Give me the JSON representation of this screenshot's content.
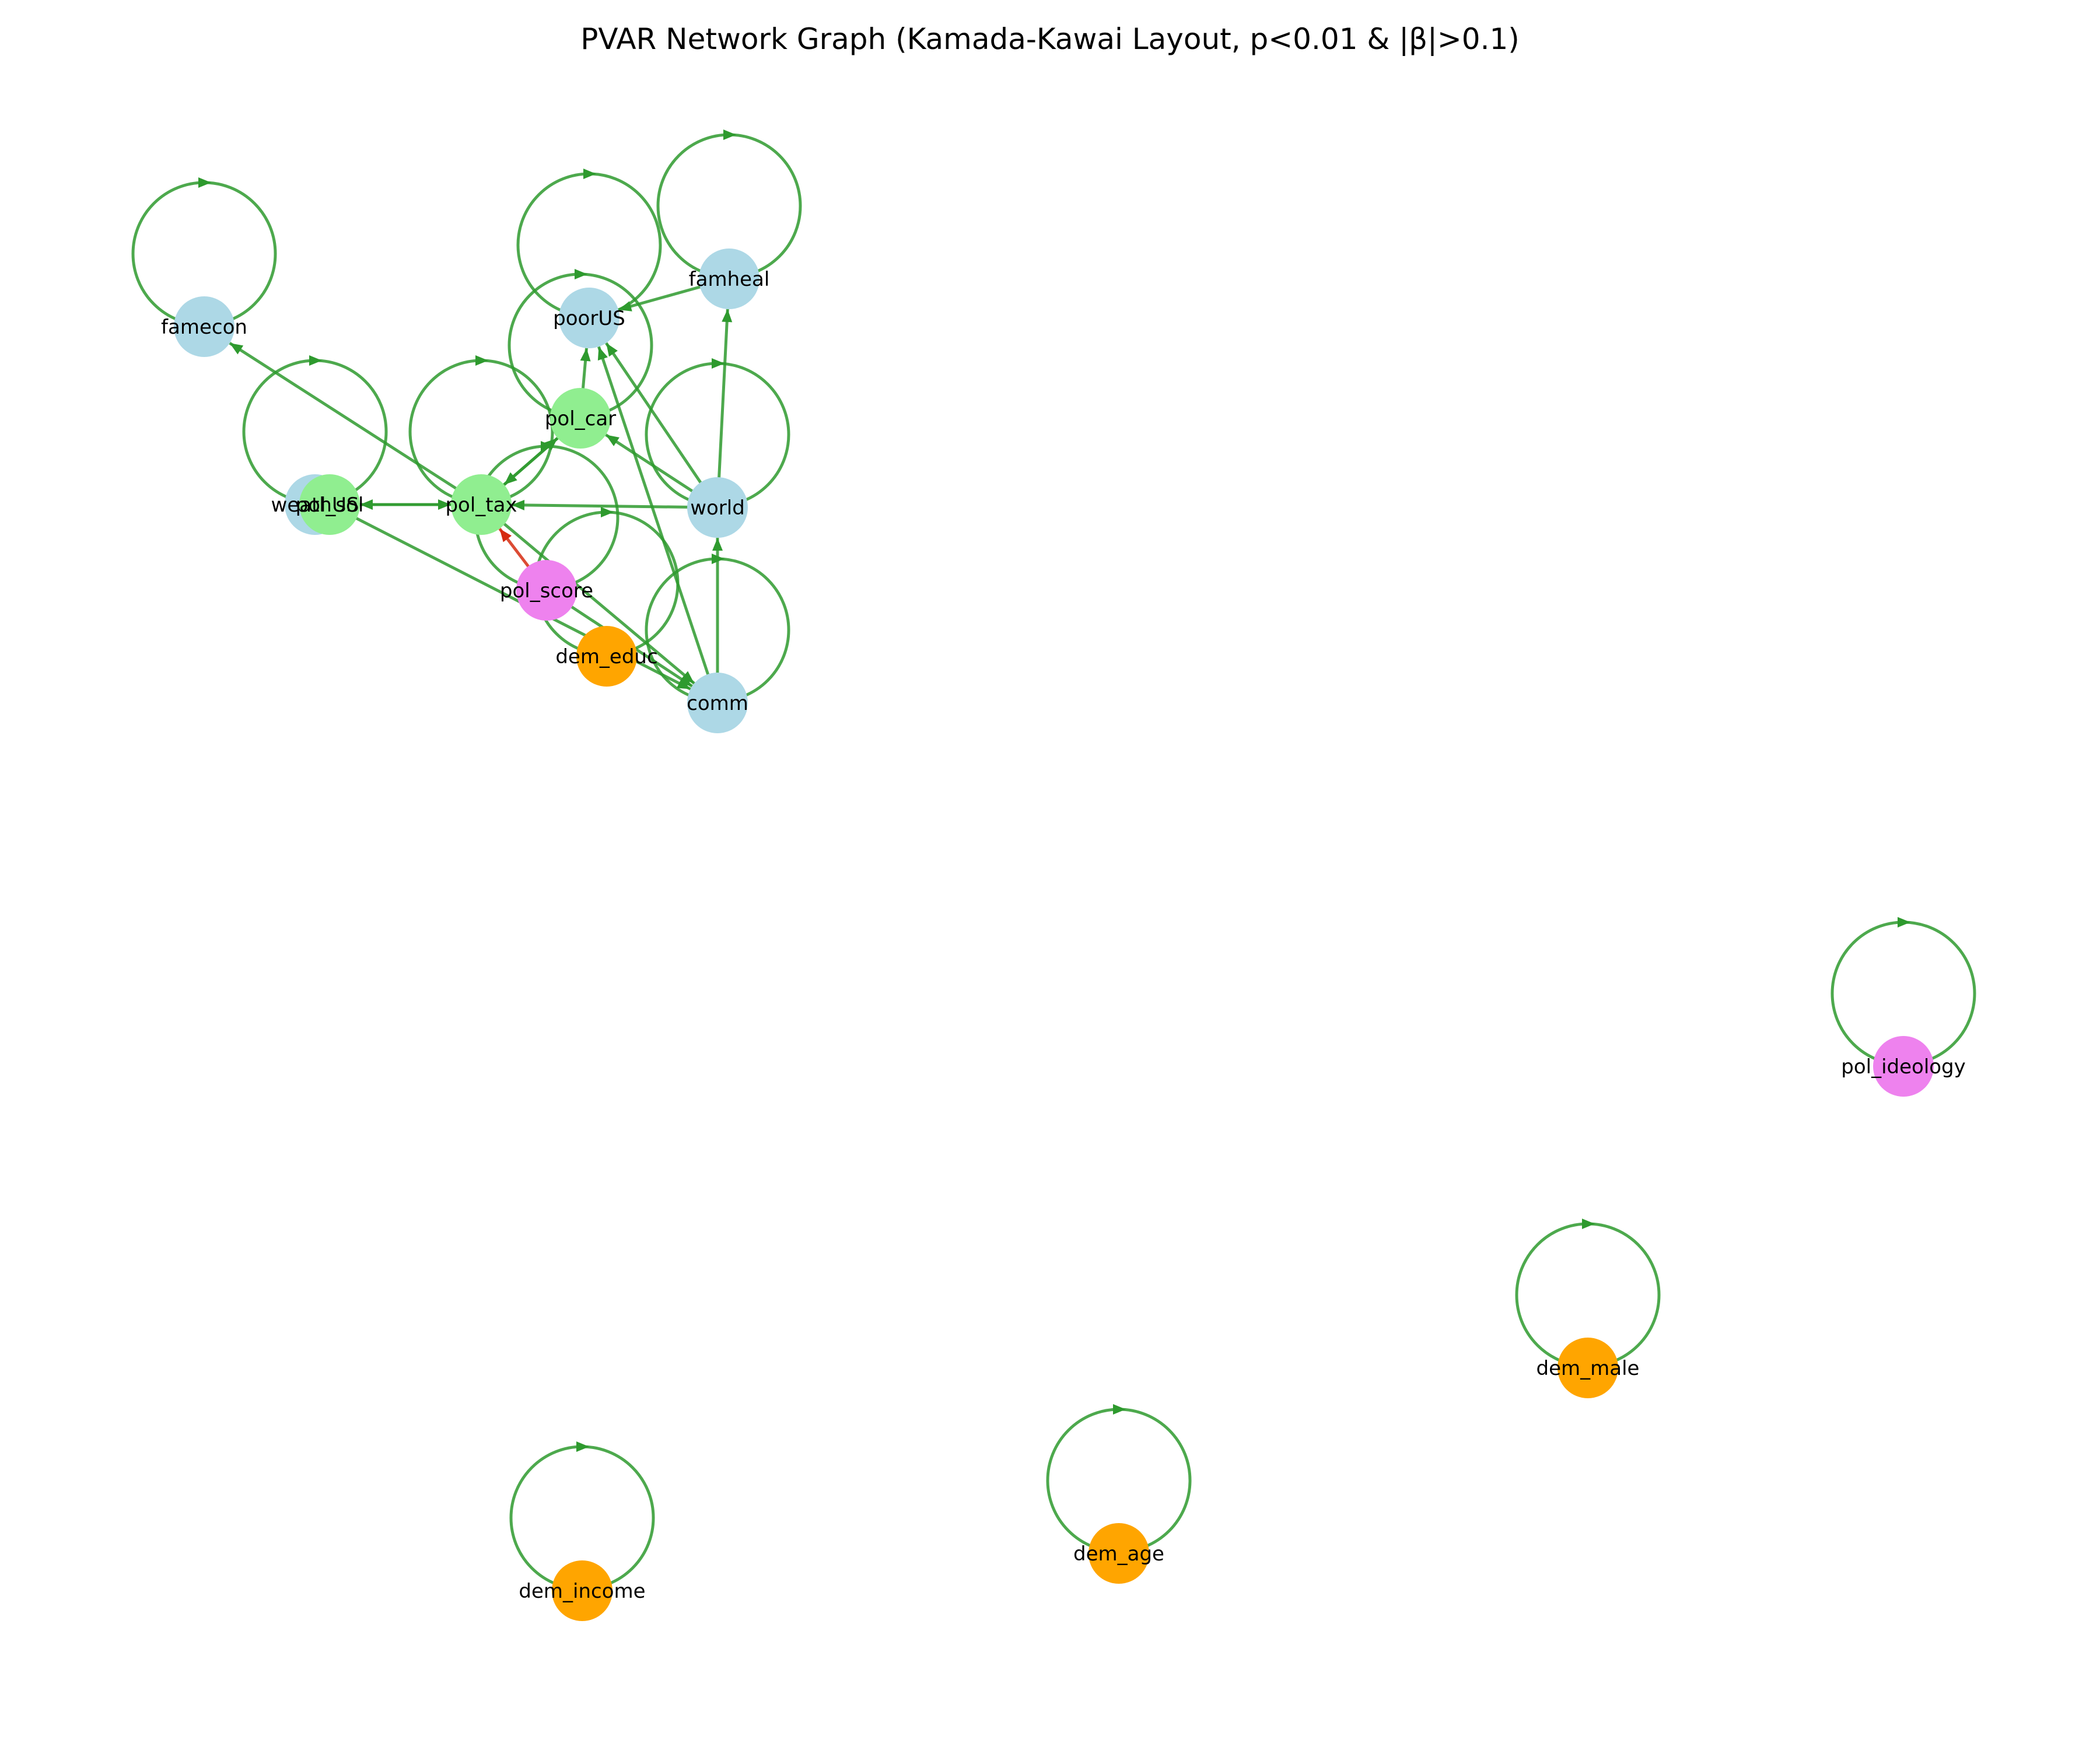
{
  "title": "PVAR Network Graph (Kamada-Kawai Layout, p<0.01 & |β|>0.1)",
  "colors": {
    "positive_edge": "#2e9a2e",
    "negative_edge": "#d62b10",
    "node_blue": "#add8e6",
    "node_green": "#90ee90",
    "node_pink": "#ee82ee",
    "node_orange": "#ffa500"
  },
  "nodes": [
    {
      "id": "famecon",
      "label": "famecon",
      "group": "blue"
    },
    {
      "id": "poorUS",
      "label": "poorUS",
      "group": "blue"
    },
    {
      "id": "famheal",
      "label": "famheal",
      "group": "blue"
    },
    {
      "id": "world",
      "label": "world",
      "group": "blue"
    },
    {
      "id": "comm",
      "label": "comm",
      "group": "blue"
    },
    {
      "id": "weathUS",
      "label": "weathUS",
      "group": "blue"
    },
    {
      "id": "pol_tax",
      "label": "pol_tax",
      "group": "green"
    },
    {
      "id": "pol_car",
      "label": "pol_car",
      "group": "green"
    },
    {
      "id": "pol_sol",
      "label": "pol_sol",
      "group": "green"
    },
    {
      "id": "pol_score",
      "label": "pol_score",
      "group": "pink"
    },
    {
      "id": "pol_ideology",
      "label": "pol_ideology",
      "group": "pink"
    },
    {
      "id": "dem_educ",
      "label": "dem_educ",
      "group": "orange"
    },
    {
      "id": "dem_male",
      "label": "dem_male",
      "group": "orange"
    },
    {
      "id": "dem_age",
      "label": "dem_age",
      "group": "orange"
    },
    {
      "id": "dem_income",
      "label": "dem_income",
      "group": "orange"
    }
  ],
  "edges": [
    {
      "from": "famecon",
      "to": "famecon",
      "sign": "positive"
    },
    {
      "from": "poorUS",
      "to": "poorUS",
      "sign": "positive"
    },
    {
      "from": "famheal",
      "to": "famheal",
      "sign": "positive"
    },
    {
      "from": "world",
      "to": "world",
      "sign": "positive"
    },
    {
      "from": "comm",
      "to": "comm",
      "sign": "positive"
    },
    {
      "from": "weathUS",
      "to": "weathUS",
      "sign": "positive"
    },
    {
      "from": "pol_tax",
      "to": "pol_tax",
      "sign": "positive"
    },
    {
      "from": "pol_car",
      "to": "pol_car",
      "sign": "positive"
    },
    {
      "from": "pol_score",
      "to": "pol_score",
      "sign": "positive"
    },
    {
      "from": "dem_educ",
      "to": "dem_educ",
      "sign": "positive"
    },
    {
      "from": "pol_ideology",
      "to": "pol_ideology",
      "sign": "positive"
    },
    {
      "from": "dem_male",
      "to": "dem_male",
      "sign": "positive"
    },
    {
      "from": "dem_age",
      "to": "dem_age",
      "sign": "positive"
    },
    {
      "from": "dem_income",
      "to": "dem_income",
      "sign": "positive"
    },
    {
      "from": "pol_tax",
      "to": "famecon",
      "sign": "positive"
    },
    {
      "from": "famheal",
      "to": "poorUS",
      "sign": "positive"
    },
    {
      "from": "pol_car",
      "to": "poorUS",
      "sign": "positive"
    },
    {
      "from": "world",
      "to": "poorUS",
      "sign": "positive"
    },
    {
      "from": "comm",
      "to": "poorUS",
      "sign": "positive"
    },
    {
      "from": "world",
      "to": "famheal",
      "sign": "positive"
    },
    {
      "from": "world",
      "to": "pol_car",
      "sign": "positive"
    },
    {
      "from": "pol_tax",
      "to": "pol_car",
      "sign": "positive"
    },
    {
      "from": "pol_car",
      "to": "pol_tax",
      "sign": "positive"
    },
    {
      "from": "world",
      "to": "pol_tax",
      "sign": "positive"
    },
    {
      "from": "pol_sol",
      "to": "pol_tax",
      "sign": "positive"
    },
    {
      "from": "pol_tax",
      "to": "pol_sol",
      "sign": "positive"
    },
    {
      "from": "pol_score",
      "to": "pol_tax",
      "sign": "negative"
    },
    {
      "from": "pol_tax",
      "to": "comm",
      "sign": "positive"
    },
    {
      "from": "pol_sol",
      "to": "comm",
      "sign": "positive"
    },
    {
      "from": "pol_score",
      "to": "comm",
      "sign": "positive"
    },
    {
      "from": "comm",
      "to": "world",
      "sign": "positive"
    }
  ]
}
